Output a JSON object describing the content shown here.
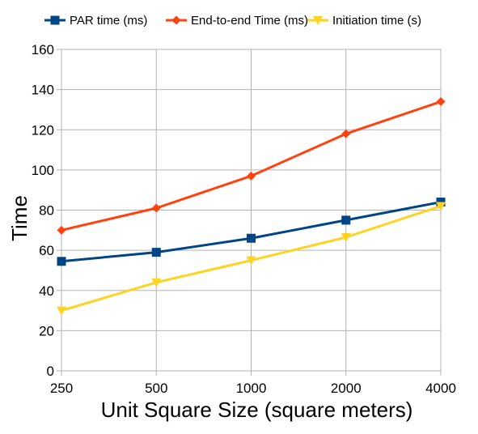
{
  "chart_data": {
    "type": "line",
    "title": "",
    "xlabel": "Unit Square Size (square meters)",
    "ylabel": "Time",
    "categories": [
      "250",
      "500",
      "1000",
      "2000",
      "4000"
    ],
    "ylim": [
      0,
      160
    ],
    "yticks": [
      0,
      20,
      40,
      60,
      80,
      100,
      120,
      140,
      160
    ],
    "grid": true,
    "legend_position": "top",
    "series": [
      {
        "name": "PAR time (ms)",
        "color": "#004586",
        "marker": "square",
        "values": [
          54.5,
          59,
          66,
          75,
          84
        ]
      },
      {
        "name": "End-to-end Time (ms)",
        "color": "#ff420e",
        "marker": "diamond",
        "values": [
          70,
          81,
          97,
          118,
          134
        ]
      },
      {
        "name": "Initiation time (s)",
        "color": "#ffd320",
        "marker": "triangle-down",
        "values": [
          30,
          44,
          55,
          66.5,
          82
        ]
      }
    ]
  }
}
